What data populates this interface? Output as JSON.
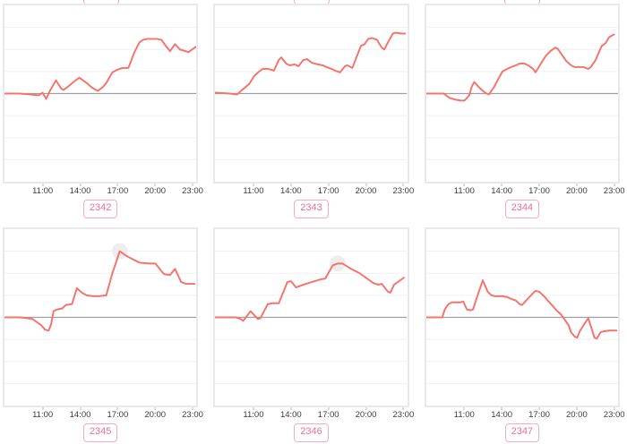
{
  "page": {
    "background": "#ffffff"
  },
  "colors": {
    "line": "#f4746d",
    "baseline": "#9f9f9f",
    "gridline": "#f1f1f1",
    "box_border": "#e9e9e9",
    "tick_text": "#3c3c3c",
    "badge_border": "#f6aac6",
    "badge_text": "#ee6d9f",
    "peak_marker": "#ededed"
  },
  "axis": {
    "tick_labels": [
      "11:00",
      "14:00",
      "17:00",
      "20:00",
      "23:00"
    ],
    "tick_hours": [
      11,
      14,
      17,
      20,
      23
    ],
    "x_min": 7.8,
    "x_max": 23.45,
    "ylim": [
      -100,
      100
    ],
    "baseline": 0,
    "grid_step": 25
  },
  "chart_data": [
    {
      "type": "line",
      "code": "2342",
      "baseline": 0,
      "points": [
        [
          7.8,
          0
        ],
        [
          9,
          0
        ],
        [
          9.9,
          -1
        ],
        [
          10.6,
          -2
        ],
        [
          10.9,
          1
        ],
        [
          11.2,
          -6
        ],
        [
          11.5,
          3
        ],
        [
          12,
          15
        ],
        [
          12.4,
          6
        ],
        [
          12.6,
          4
        ],
        [
          12.9,
          7
        ],
        [
          13.5,
          14
        ],
        [
          13.9,
          18
        ],
        [
          14.5,
          12
        ],
        [
          14.9,
          7
        ],
        [
          15.4,
          3
        ],
        [
          15.8,
          7
        ],
        [
          16.1,
          12
        ],
        [
          16.6,
          24
        ],
        [
          17,
          27
        ],
        [
          17.4,
          29
        ],
        [
          17.9,
          29
        ],
        [
          18.4,
          47
        ],
        [
          18.8,
          58
        ],
        [
          19.1,
          61
        ],
        [
          19.5,
          62
        ],
        [
          20.2,
          62
        ],
        [
          20.6,
          61
        ],
        [
          20.9,
          55
        ],
        [
          21.3,
          48
        ],
        [
          21.7,
          56
        ],
        [
          22.1,
          50
        ],
        [
          22.8,
          47
        ],
        [
          23.2,
          51
        ],
        [
          23.4,
          53
        ]
      ]
    },
    {
      "type": "line",
      "code": "2343",
      "baseline": 0,
      "points": [
        [
          7.8,
          1
        ],
        [
          9,
          0
        ],
        [
          9.6,
          -1
        ],
        [
          10,
          4
        ],
        [
          10.6,
          11
        ],
        [
          11,
          20
        ],
        [
          11.4,
          25
        ],
        [
          11.7,
          28
        ],
        [
          12.1,
          28
        ],
        [
          12.4,
          27
        ],
        [
          12.6,
          26
        ],
        [
          13,
          38
        ],
        [
          13.2,
          41
        ],
        [
          13.6,
          34
        ],
        [
          13.9,
          32
        ],
        [
          14.3,
          33
        ],
        [
          14.6,
          31
        ],
        [
          15,
          38
        ],
        [
          15.3,
          39
        ],
        [
          15.7,
          35
        ],
        [
          16.2,
          33
        ],
        [
          16.6,
          32
        ],
        [
          16.9,
          30
        ],
        [
          17.3,
          28
        ],
        [
          17.6,
          26
        ],
        [
          18,
          24
        ],
        [
          18.4,
          31
        ],
        [
          18.6,
          32
        ],
        [
          19,
          29
        ],
        [
          19.5,
          47
        ],
        [
          19.7,
          54
        ],
        [
          20,
          56
        ],
        [
          20.3,
          62
        ],
        [
          20.6,
          63
        ],
        [
          21,
          61
        ],
        [
          21.4,
          52
        ],
        [
          21.6,
          50
        ],
        [
          21.9,
          58
        ],
        [
          22.3,
          68
        ],
        [
          22.5,
          69
        ],
        [
          23,
          68
        ],
        [
          23.3,
          68
        ]
      ]
    },
    {
      "type": "line",
      "code": "2344",
      "baseline": 0,
      "points": [
        [
          7.8,
          0
        ],
        [
          9.2,
          0
        ],
        [
          9.4,
          -2
        ],
        [
          9.7,
          -5
        ],
        [
          10.2,
          -7
        ],
        [
          10.6,
          -8
        ],
        [
          10.9,
          -8
        ],
        [
          11.3,
          -2
        ],
        [
          11.5,
          8
        ],
        [
          11.7,
          13
        ],
        [
          12.1,
          7
        ],
        [
          12.4,
          3
        ],
        [
          12.7,
          0
        ],
        [
          12.9,
          -1
        ],
        [
          13.3,
          7
        ],
        [
          13.6,
          15
        ],
        [
          14,
          25
        ],
        [
          14.4,
          28
        ],
        [
          14.7,
          30
        ],
        [
          15.1,
          32
        ],
        [
          15.4,
          34
        ],
        [
          15.8,
          34
        ],
        [
          16.1,
          32
        ],
        [
          16.5,
          28
        ],
        [
          16.7,
          24
        ],
        [
          17.1,
          33
        ],
        [
          17.5,
          42
        ],
        [
          17.9,
          48
        ],
        [
          18.3,
          52
        ],
        [
          18.5,
          51
        ],
        [
          18.9,
          43
        ],
        [
          19.2,
          37
        ],
        [
          19.6,
          32
        ],
        [
          19.9,
          30
        ],
        [
          20.3,
          30
        ],
        [
          20.6,
          30
        ],
        [
          21,
          28
        ],
        [
          21.2,
          30
        ],
        [
          21.6,
          38
        ],
        [
          21.9,
          48
        ],
        [
          22.1,
          54
        ],
        [
          22.4,
          57
        ],
        [
          22.7,
          64
        ],
        [
          23.1,
          67
        ]
      ]
    },
    {
      "type": "line",
      "code": "2345",
      "baseline": 0,
      "peak_marker": [
        17.2,
        75
      ],
      "points": [
        [
          7.8,
          0
        ],
        [
          9,
          0
        ],
        [
          9.7,
          -1
        ],
        [
          10.1,
          -2
        ],
        [
          10.4,
          -5
        ],
        [
          10.8,
          -9
        ],
        [
          11.1,
          -14
        ],
        [
          11.4,
          -15
        ],
        [
          11.6,
          -8
        ],
        [
          11.8,
          7
        ],
        [
          12.1,
          9
        ],
        [
          12.5,
          10
        ],
        [
          12.8,
          14
        ],
        [
          13.3,
          15
        ],
        [
          13.7,
          33
        ],
        [
          14.1,
          28
        ],
        [
          14.5,
          25
        ],
        [
          15,
          24
        ],
        [
          15.5,
          24
        ],
        [
          16.1,
          25
        ],
        [
          16.6,
          50
        ],
        [
          17.2,
          75
        ],
        [
          17.7,
          70
        ],
        [
          18.1,
          67
        ],
        [
          18.8,
          62
        ],
        [
          19.6,
          61
        ],
        [
          20.1,
          61
        ],
        [
          20.8,
          49
        ],
        [
          21.3,
          48
        ],
        [
          21.7,
          55
        ],
        [
          22.2,
          40
        ],
        [
          22.6,
          38
        ],
        [
          23.3,
          38
        ]
      ]
    },
    {
      "type": "line",
      "code": "2346",
      "baseline": 0,
      "peak_marker": [
        17.8,
        61
      ],
      "points": [
        [
          7.8,
          0
        ],
        [
          9.5,
          0
        ],
        [
          9.9,
          -2
        ],
        [
          10.1,
          -4
        ],
        [
          10.7,
          7
        ],
        [
          11.3,
          -2
        ],
        [
          11.5,
          -1
        ],
        [
          12.1,
          15
        ],
        [
          12.5,
          16
        ],
        [
          13,
          16
        ],
        [
          13.7,
          40
        ],
        [
          14,
          41
        ],
        [
          14.4,
          34
        ],
        [
          15,
          37
        ],
        [
          15.7,
          40
        ],
        [
          16.4,
          43
        ],
        [
          16.8,
          44
        ],
        [
          17.4,
          59
        ],
        [
          17.8,
          61
        ],
        [
          18.2,
          61
        ],
        [
          18.9,
          55
        ],
        [
          19.6,
          50
        ],
        [
          20.3,
          43
        ],
        [
          20.7,
          39
        ],
        [
          21.1,
          37
        ],
        [
          21.4,
          38
        ],
        [
          21.9,
          29
        ],
        [
          22.1,
          28
        ],
        [
          22.4,
          37
        ],
        [
          22.9,
          42
        ],
        [
          23.2,
          45
        ]
      ]
    },
    {
      "type": "line",
      "code": "2347",
      "baseline": 0,
      "points": [
        [
          7.8,
          0
        ],
        [
          9.1,
          0
        ],
        [
          9.3,
          9
        ],
        [
          9.6,
          15
        ],
        [
          9.9,
          17
        ],
        [
          10.6,
          17
        ],
        [
          10.8,
          18
        ],
        [
          11.1,
          9
        ],
        [
          11.4,
          8
        ],
        [
          11.6,
          9
        ],
        [
          12,
          26
        ],
        [
          12.2,
          34
        ],
        [
          12.4,
          42
        ],
        [
          12.8,
          29
        ],
        [
          13.1,
          25
        ],
        [
          13.4,
          24
        ],
        [
          14,
          24
        ],
        [
          14.4,
          23
        ],
        [
          14.7,
          21
        ],
        [
          15.1,
          19
        ],
        [
          15.4,
          15
        ],
        [
          15.6,
          14
        ],
        [
          16,
          20
        ],
        [
          16.4,
          26
        ],
        [
          16.7,
          30
        ],
        [
          17,
          29
        ],
        [
          17.4,
          24
        ],
        [
          17.7,
          19
        ],
        [
          18.1,
          13
        ],
        [
          18.4,
          8
        ],
        [
          18.8,
          3
        ],
        [
          19,
          -1
        ],
        [
          19.4,
          -9
        ],
        [
          19.6,
          -17
        ],
        [
          19.9,
          -22
        ],
        [
          20.1,
          -23
        ],
        [
          20.3,
          -16
        ],
        [
          20.7,
          -7
        ],
        [
          21,
          -1
        ],
        [
          21.3,
          -14
        ],
        [
          21.5,
          -23
        ],
        [
          21.7,
          -24
        ],
        [
          22,
          -17
        ],
        [
          22.2,
          -16
        ],
        [
          22.7,
          -15
        ],
        [
          23.3,
          -15
        ]
      ]
    }
  ]
}
